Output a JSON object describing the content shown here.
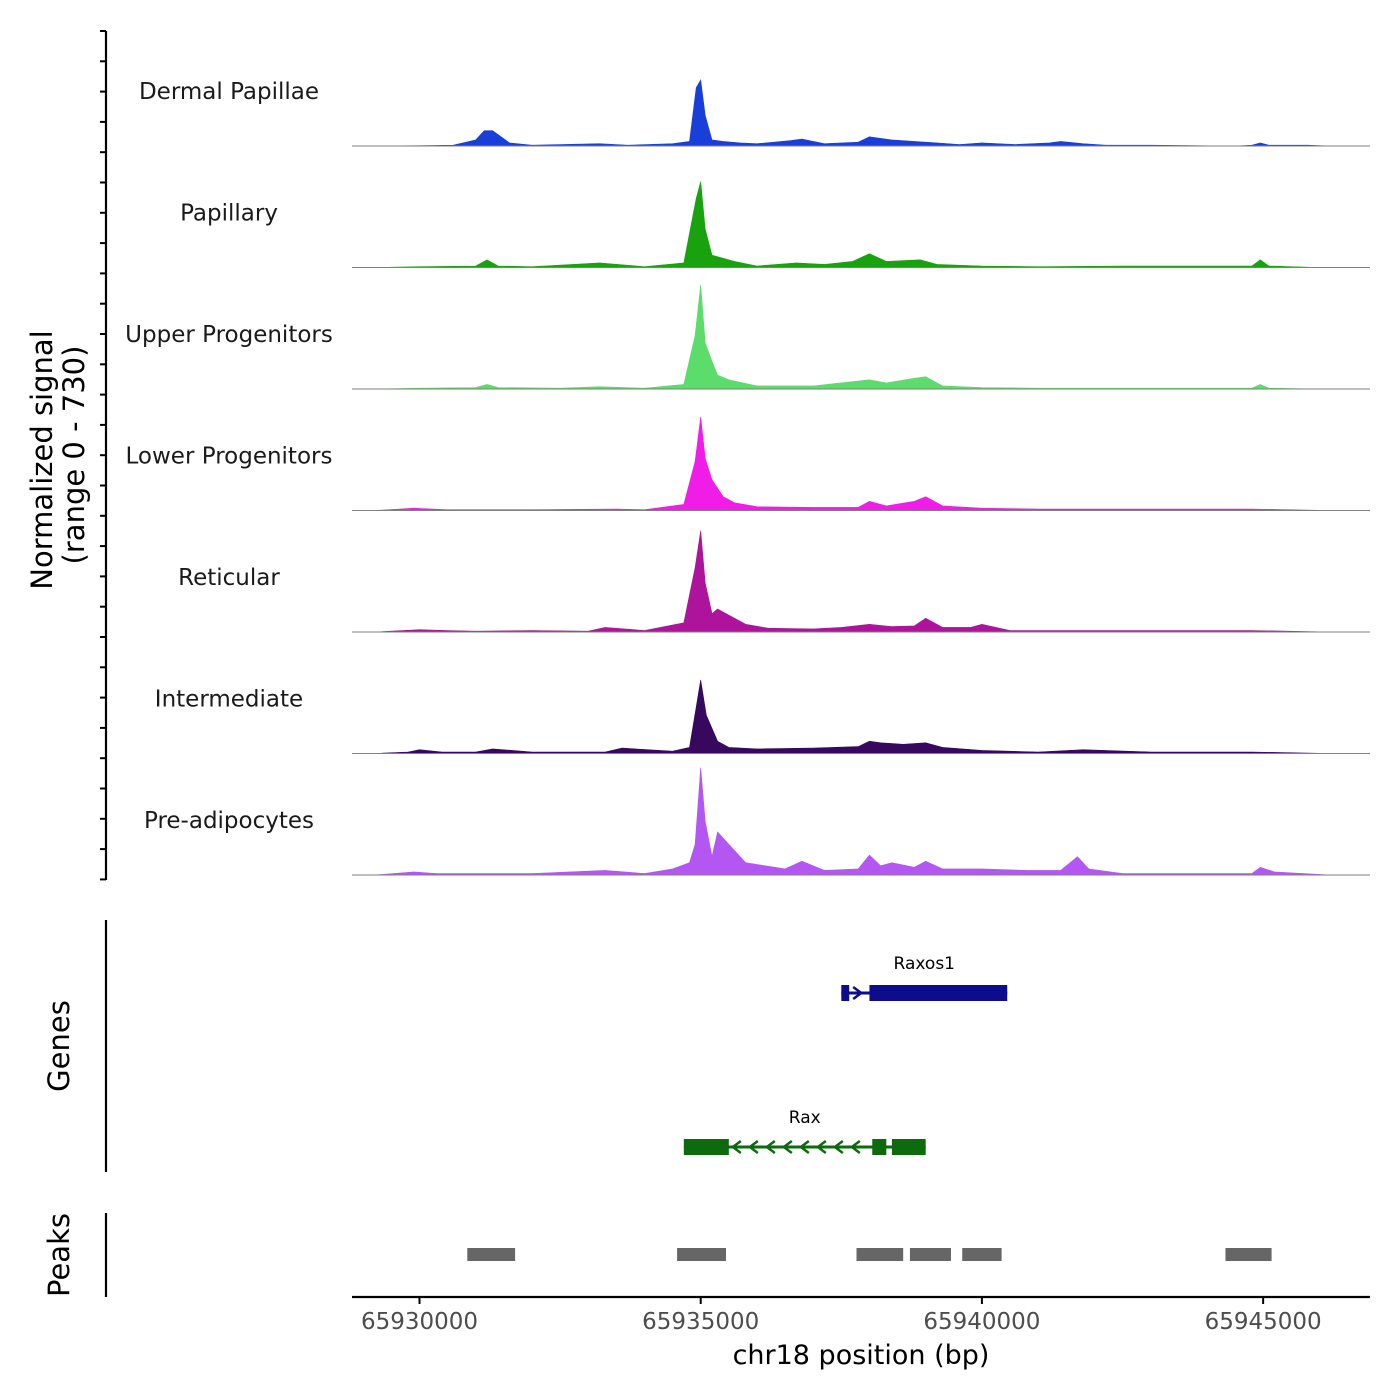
{
  "chart_data": {
    "type": "area",
    "title": "",
    "ylabel_line1": "Normalized signal",
    "ylabel_line2": "(range 0 - 730)",
    "xlabel": "chr18 position (bp)",
    "xlim": [
      65928800,
      65946900
    ],
    "ylim": [
      0,
      730
    ],
    "x_ticks": [
      65930000,
      65935000,
      65940000,
      65945000
    ],
    "x_tick_labels": [
      "65930000",
      "65935000",
      "65940000",
      "65945000"
    ],
    "genes_label": "Genes",
    "peaks_label": "Peaks",
    "tracks": [
      {
        "name": "Dermal Papillae",
        "color": "#1a3fd9",
        "x": [
          65929200,
          65930000,
          65930600,
          65931000,
          65931150,
          65931300,
          65931600,
          65932000,
          65933200,
          65933700,
          65934500,
          65934800,
          65934920,
          65935000,
          65935080,
          65935200,
          65935400,
          65935700,
          65936000,
          65936600,
          65936800,
          65937200,
          65937800,
          65938000,
          65938400,
          65938800,
          65939200,
          65939600,
          65940000,
          65940600,
          65941200,
          65941400,
          65941800,
          65942200,
          65943000,
          65944500,
          65944800,
          65944950,
          65945100,
          65945800,
          65946200
        ],
        "y": [
          0,
          2,
          5,
          40,
          100,
          100,
          20,
          5,
          15,
          5,
          15,
          30,
          380,
          430,
          200,
          40,
          30,
          20,
          15,
          35,
          45,
          15,
          25,
          60,
          40,
          30,
          20,
          10,
          20,
          10,
          20,
          30,
          15,
          5,
          5,
          0,
          5,
          20,
          5,
          5,
          0
        ]
      },
      {
        "name": "Papillary",
        "color": "#18a30e",
        "x": [
          65929200,
          65930000,
          65931000,
          65931200,
          65931400,
          65932000,
          65933200,
          65934000,
          65934700,
          65934920,
          65935000,
          65935080,
          65935200,
          65935600,
          65936000,
          65936700,
          65937200,
          65937700,
          65938000,
          65938300,
          65938900,
          65939200,
          65940000,
          65941000,
          65942500,
          65944800,
          65944950,
          65945100,
          65946000
        ],
        "y": [
          0,
          5,
          10,
          50,
          10,
          5,
          30,
          5,
          30,
          450,
          560,
          250,
          80,
          40,
          10,
          30,
          20,
          40,
          90,
          40,
          50,
          20,
          10,
          5,
          10,
          10,
          50,
          10,
          0
        ]
      },
      {
        "name": "Upper Progenitors",
        "color": "#5cdc6a",
        "x": [
          65929200,
          65930000,
          65931000,
          65931200,
          65931400,
          65932500,
          65933200,
          65934000,
          65934700,
          65934900,
          65935000,
          65935080,
          65935200,
          65935300,
          65935500,
          65936000,
          65937000,
          65938000,
          65938300,
          65938800,
          65939000,
          65939300,
          65940000,
          65941000,
          65944800,
          65944950,
          65945100,
          65946000
        ],
        "y": [
          0,
          5,
          10,
          30,
          10,
          5,
          15,
          5,
          30,
          350,
          680,
          300,
          180,
          90,
          60,
          20,
          20,
          60,
          40,
          70,
          80,
          20,
          10,
          5,
          5,
          30,
          5,
          0
        ]
      },
      {
        "name": "Lower Progenitors",
        "color": "#f01de8",
        "x": [
          65929200,
          65929900,
          65930500,
          65931000,
          65932000,
          65933500,
          65934000,
          65934700,
          65934900,
          65935000,
          65935080,
          65935200,
          65935400,
          65935600,
          65936000,
          65937000,
          65937800,
          65938000,
          65938300,
          65938800,
          65939000,
          65939300,
          65940000,
          65941000,
          65942500,
          65944800,
          65946200
        ],
        "y": [
          0,
          15,
          5,
          5,
          5,
          10,
          5,
          40,
          320,
          610,
          340,
          200,
          90,
          50,
          25,
          20,
          20,
          60,
          30,
          60,
          90,
          30,
          15,
          10,
          10,
          10,
          0
        ]
      },
      {
        "name": "Reticular",
        "color": "#ad149b",
        "x": [
          65929200,
          65930000,
          65930500,
          65931000,
          65932000,
          65933000,
          65933300,
          65934000,
          65934700,
          65934900,
          65935000,
          65935080,
          65935200,
          65935300,
          65935500,
          65935800,
          65936200,
          65937000,
          65937500,
          65938000,
          65938400,
          65938800,
          65939000,
          65939300,
          65939800,
          65940000,
          65940500,
          65941500,
          65944800,
          65946200
        ],
        "y": [
          0,
          15,
          10,
          5,
          10,
          5,
          30,
          10,
          60,
          420,
          660,
          320,
          120,
          150,
          110,
          50,
          25,
          20,
          30,
          50,
          35,
          40,
          90,
          30,
          30,
          50,
          10,
          10,
          10,
          0
        ]
      },
      {
        "name": "Intermediate",
        "color": "#37085d",
        "x": [
          65929200,
          65929800,
          65930000,
          65930400,
          65931000,
          65931300,
          65932000,
          65933300,
          65933600,
          65934500,
          65934800,
          65935000,
          65935100,
          65935300,
          65935500,
          65936000,
          65937000,
          65937800,
          65938000,
          65938200,
          65938600,
          65939000,
          65939300,
          65940000,
          65941000,
          65941800,
          65943000,
          65944800,
          65946200
        ],
        "y": [
          0,
          10,
          25,
          10,
          10,
          30,
          10,
          10,
          35,
          15,
          40,
          480,
          250,
          80,
          40,
          30,
          35,
          45,
          80,
          70,
          60,
          70,
          40,
          20,
          10,
          25,
          10,
          10,
          0
        ]
      },
      {
        "name": "Pre-adipocytes",
        "color": "#b456f2",
        "x": [
          65929200,
          65929900,
          65930300,
          65931000,
          65932000,
          65933300,
          65934000,
          65934500,
          65934800,
          65934900,
          65935000,
          65935080,
          65935200,
          65935300,
          65935500,
          65935800,
          65936500,
          65936800,
          65937200,
          65937800,
          65938000,
          65938200,
          65938400,
          65938800,
          65939000,
          65939300,
          65940000,
          65940800,
          65941400,
          65941700,
          65941900,
          65942500,
          65944800,
          65944950,
          65945200,
          65946200
        ],
        "y": [
          0,
          20,
          10,
          10,
          10,
          30,
          10,
          40,
          80,
          200,
          700,
          350,
          120,
          280,
          200,
          80,
          40,
          90,
          30,
          40,
          130,
          60,
          80,
          50,
          90,
          40,
          40,
          30,
          30,
          120,
          40,
          10,
          10,
          50,
          20,
          0
        ]
      }
    ],
    "genes": [
      {
        "name": "Raxos1",
        "color": "#0c0c8c",
        "strand": "+",
        "start": 65937500,
        "end": 65940450,
        "exons": [
          [
            65937500,
            65937640
          ],
          [
            65938000,
            65940450
          ]
        ]
      },
      {
        "name": "Rax",
        "color": "#0d6b0d",
        "strand": "-",
        "start": 65934700,
        "end": 65939000,
        "exons": [
          [
            65934700,
            65935500
          ],
          [
            65938050,
            65938300
          ],
          [
            65938400,
            65939000
          ]
        ]
      }
    ],
    "peaks": [
      [
        65930850,
        65931700
      ],
      [
        65934580,
        65935450
      ],
      [
        65937770,
        65938600
      ],
      [
        65938720,
        65939450
      ],
      [
        65939650,
        65940350
      ],
      [
        65944330,
        65945150
      ]
    ]
  }
}
